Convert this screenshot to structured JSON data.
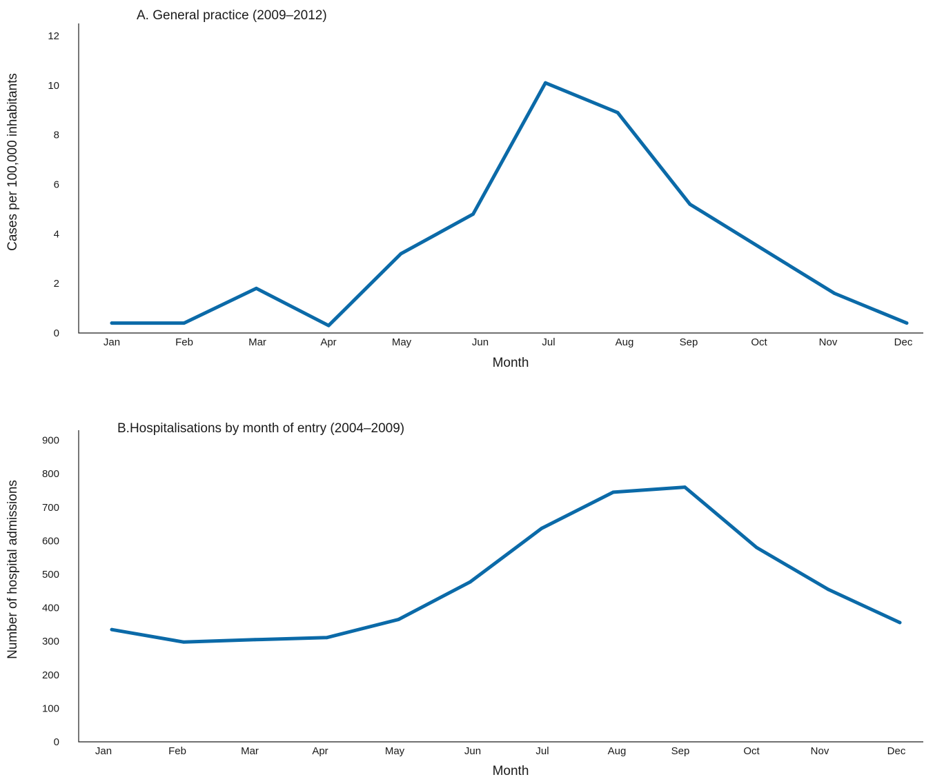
{
  "colors": {
    "line": "#0b6aa8",
    "axis": "#1a1a1a"
  },
  "chart_data": [
    {
      "type": "line",
      "title": "A. General practice (2009–2012)",
      "xlabel": "Month",
      "ylabel": "Cases per 100,000 inhabitants",
      "ylim": [
        0,
        12.5
      ],
      "yticks": [
        "0",
        "2",
        "4",
        "6",
        "8",
        "10",
        "12"
      ],
      "categories": [
        "Jan",
        "Feb",
        "Mar",
        "Apr",
        "May",
        "Jun",
        "Jul",
        "Aug",
        "Sep",
        "Oct",
        "Nov",
        "Dec"
      ],
      "series": [
        {
          "values": [
            0.4,
            0.4,
            1.8,
            0.3,
            3.2,
            4.8,
            10.1,
            8.9,
            5.2,
            3.4,
            1.6,
            0.4
          ]
        }
      ],
      "grid": false,
      "legend": "none"
    },
    {
      "type": "line",
      "title": "B.Hospitalisations by month of entry (2004–2009)",
      "xlabel": "Month",
      "ylabel": "Number of hospital admissions",
      "ylim": [
        0,
        930
      ],
      "yticks": [
        "0",
        "100",
        "200",
        "300",
        "400",
        "500",
        "600",
        "700",
        "800",
        "900"
      ],
      "categories": [
        "Jan",
        "Feb",
        "Mar",
        "Apr",
        "May",
        "Jun",
        "Jul",
        "Aug",
        "Sep",
        "Oct",
        "Nov",
        "Dec"
      ],
      "series": [
        {
          "values": [
            335,
            298,
            305,
            311,
            365,
            477,
            637,
            745,
            760,
            580,
            455,
            356
          ]
        }
      ],
      "grid": false,
      "legend": "none"
    }
  ]
}
